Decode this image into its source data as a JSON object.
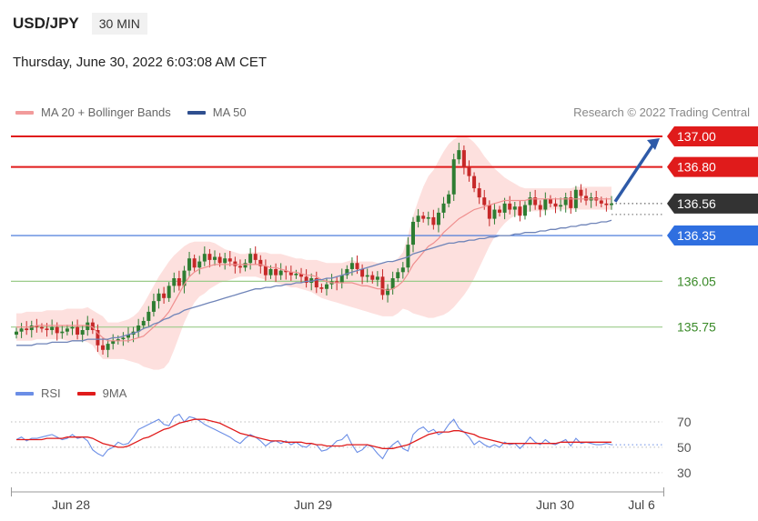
{
  "header": {
    "symbol": "USD/JPY",
    "timeframe": "30 MIN"
  },
  "timestamp": "Thursday, June 30, 2022 6:03:08 AM CET",
  "legend": {
    "ma20_label": "MA 20 + Bollinger Bands",
    "ma50_label": "MA 50",
    "rsi_label": "RSI",
    "ma9_label": "9MA"
  },
  "credit": "Research © 2022 Trading Central",
  "colors": {
    "up": "#2e7d32",
    "down": "#c62828",
    "resistance": "#e01b1b",
    "support_line": "#3a6fd8",
    "green_level": "#9ccc8a",
    "bb_fill": "#fde0de",
    "ma20": "#ef8f8f",
    "ma50": "#6f84b8",
    "rsi": "#6b8ee6",
    "rsi_ma": "#e01b1b",
    "price_tag": "#333333",
    "support_tag": "#2f6fe0"
  },
  "chart_data": {
    "type": "candlestick",
    "price_ylim": [
      135.42,
      137.06
    ],
    "current_price": 136.56,
    "levels": [
      {
        "label": "137.00",
        "value": 137.0,
        "kind": "resistance"
      },
      {
        "label": "136.80",
        "value": 136.8,
        "kind": "resistance"
      },
      {
        "label": "136.56",
        "value": 136.56,
        "kind": "current"
      },
      {
        "label": "136.35",
        "value": 136.35,
        "kind": "support"
      },
      {
        "label": "136.05",
        "value": 136.05,
        "kind": "target"
      },
      {
        "label": "135.75",
        "value": 135.75,
        "kind": "target"
      }
    ],
    "x_ticks": [
      "Jun 28",
      "Jun 29",
      "Jun 30",
      "Jul 6"
    ],
    "closes": [
      135.72,
      135.74,
      135.73,
      135.76,
      135.75,
      135.74,
      135.73,
      135.75,
      135.71,
      135.72,
      135.74,
      135.75,
      135.7,
      135.73,
      135.78,
      135.73,
      135.63,
      135.6,
      135.64,
      135.66,
      135.67,
      135.68,
      135.7,
      135.72,
      135.76,
      135.79,
      135.85,
      135.92,
      135.97,
      135.94,
      136.02,
      136.07,
      136.02,
      136.12,
      136.2,
      136.14,
      136.18,
      136.23,
      136.19,
      136.21,
      136.17,
      136.2,
      136.18,
      136.15,
      136.14,
      136.17,
      136.23,
      136.19,
      136.15,
      136.09,
      136.13,
      136.09,
      136.12,
      136.11,
      136.09,
      136.1,
      136.08,
      136.04,
      136.07,
      136.01,
      136.0,
      136.03,
      136.05,
      136.04,
      136.09,
      136.13,
      136.17,
      136.13,
      136.08,
      136.09,
      136.06,
      136.08,
      135.96,
      136.0,
      136.07,
      136.11,
      136.14,
      136.29,
      136.44,
      136.48,
      136.46,
      136.47,
      136.42,
      136.5,
      136.56,
      136.62,
      136.85,
      136.91,
      136.8,
      136.74,
      136.66,
      136.6,
      136.55,
      136.46,
      136.52,
      136.5,
      136.56,
      136.52,
      136.54,
      136.48,
      136.55,
      136.6,
      136.55,
      136.52,
      136.59,
      136.56,
      136.54,
      136.55,
      136.6,
      136.53,
      136.65,
      136.61,
      136.58,
      136.6,
      136.58,
      136.56,
      136.55,
      136.56
    ],
    "bb_upper": [
      135.84,
      135.84,
      135.85,
      135.85,
      135.85,
      135.85,
      135.86,
      135.86,
      135.86,
      135.86,
      135.87,
      135.87,
      135.87,
      135.87,
      135.88,
      135.86,
      135.84,
      135.82,
      135.78,
      135.78,
      135.78,
      135.79,
      135.8,
      135.82,
      135.85,
      135.9,
      135.96,
      136.02,
      136.08,
      136.13,
      136.18,
      136.22,
      136.25,
      136.28,
      136.3,
      136.31,
      136.31,
      136.31,
      136.31,
      136.3,
      136.28,
      136.26,
      136.25,
      136.24,
      136.23,
      136.23,
      136.24,
      136.24,
      136.24,
      136.24,
      136.23,
      136.23,
      136.23,
      136.22,
      136.21,
      136.2,
      136.2,
      136.19,
      136.19,
      136.19,
      136.18,
      136.17,
      136.17,
      136.17,
      136.17,
      136.18,
      136.19,
      136.18,
      136.18,
      136.18,
      136.18,
      136.17,
      136.17,
      136.17,
      136.18,
      136.2,
      136.24,
      136.35,
      136.48,
      136.58,
      136.67,
      136.74,
      136.78,
      136.84,
      136.9,
      136.95,
      136.98,
      137.0,
      137.0,
      136.99,
      136.96,
      136.92,
      136.87,
      136.83,
      136.79,
      136.76,
      136.73,
      136.71,
      136.69,
      136.67,
      136.66,
      136.66,
      136.66,
      136.66,
      136.66,
      136.66,
      136.66,
      136.66,
      136.66,
      136.66,
      136.67,
      136.67,
      136.67,
      136.67,
      136.67,
      136.67,
      136.67,
      136.67
    ],
    "bb_lower": [
      135.66,
      135.66,
      135.66,
      135.66,
      135.67,
      135.67,
      135.67,
      135.67,
      135.67,
      135.67,
      135.66,
      135.66,
      135.66,
      135.66,
      135.65,
      135.63,
      135.58,
      135.54,
      135.54,
      135.54,
      135.54,
      135.54,
      135.53,
      135.52,
      135.51,
      135.49,
      135.48,
      135.47,
      135.47,
      135.48,
      135.52,
      135.6,
      135.69,
      135.78,
      135.85,
      135.91,
      135.95,
      135.97,
      136.0,
      136.02,
      136.04,
      136.05,
      136.06,
      136.07,
      136.08,
      136.08,
      136.08,
      136.08,
      136.07,
      136.06,
      136.05,
      136.04,
      136.03,
      136.02,
      136.01,
      136.01,
      136.0,
      135.99,
      135.98,
      135.96,
      135.94,
      135.93,
      135.92,
      135.91,
      135.9,
      135.89,
      135.88,
      135.87,
      135.86,
      135.85,
      135.84,
      135.83,
      135.82,
      135.82,
      135.82,
      135.84,
      135.87,
      135.86,
      135.84,
      135.83,
      135.82,
      135.81,
      135.81,
      135.82,
      135.83,
      135.85,
      135.88,
      135.92,
      135.96,
      136.01,
      136.07,
      136.14,
      136.21,
      136.28,
      136.34,
      136.39,
      136.43,
      136.46,
      136.48,
      136.49,
      136.5,
      136.51,
      136.51,
      136.51,
      136.51,
      136.52,
      136.52,
      136.52,
      136.52,
      136.52,
      136.52,
      136.52,
      136.52,
      136.52,
      136.52,
      136.52,
      136.52,
      136.52
    ],
    "ma20": [
      135.75,
      135.75,
      135.75,
      135.75,
      135.76,
      135.76,
      135.76,
      135.76,
      135.76,
      135.76,
      135.76,
      135.76,
      135.76,
      135.76,
      135.76,
      135.75,
      135.71,
      135.68,
      135.66,
      135.66,
      135.66,
      135.66,
      135.66,
      135.67,
      135.68,
      135.69,
      135.72,
      135.75,
      135.78,
      135.81,
      135.85,
      135.91,
      135.97,
      136.03,
      136.08,
      136.11,
      136.13,
      136.14,
      136.15,
      136.16,
      136.16,
      136.16,
      136.16,
      136.16,
      136.16,
      136.16,
      136.16,
      136.16,
      136.16,
      136.15,
      136.14,
      136.14,
      136.13,
      136.12,
      136.11,
      136.11,
      136.1,
      136.09,
      136.09,
      136.08,
      136.06,
      136.05,
      136.04,
      136.04,
      136.04,
      136.04,
      136.04,
      136.03,
      136.02,
      136.02,
      136.01,
      136.0,
      136.0,
      135.99,
      136.0,
      136.02,
      136.05,
      136.1,
      136.16,
      136.2,
      136.24,
      136.28,
      136.3,
      136.33,
      136.37,
      136.4,
      136.43,
      136.46,
      136.48,
      136.5,
      136.52,
      136.53,
      136.54,
      136.55,
      136.56,
      136.57,
      136.58,
      136.58,
      136.58,
      136.58,
      136.58,
      136.59,
      136.59,
      136.59,
      136.59,
      136.59,
      136.59,
      136.59,
      136.59,
      136.59,
      136.59,
      136.59,
      136.59,
      136.59,
      136.59,
      136.59,
      136.59,
      136.59
    ],
    "ma50": [
      135.63,
      135.63,
      135.63,
      135.63,
      135.64,
      135.64,
      135.64,
      135.65,
      135.65,
      135.65,
      135.65,
      135.66,
      135.66,
      135.66,
      135.67,
      135.67,
      135.67,
      135.67,
      135.67,
      135.68,
      135.68,
      135.69,
      135.7,
      135.71,
      135.72,
      135.74,
      135.75,
      135.77,
      135.78,
      135.8,
      135.81,
      135.83,
      135.84,
      135.86,
      135.87,
      135.88,
      135.89,
      135.9,
      135.91,
      135.92,
      135.93,
      135.94,
      135.95,
      135.96,
      135.97,
      135.98,
      135.99,
      136.0,
      136.0,
      136.01,
      136.01,
      136.02,
      136.02,
      136.03,
      136.03,
      136.04,
      136.04,
      136.05,
      136.05,
      136.06,
      136.06,
      136.07,
      136.07,
      136.08,
      136.09,
      136.1,
      136.11,
      136.12,
      136.13,
      136.14,
      136.15,
      136.16,
      136.17,
      136.18,
      136.18,
      136.19,
      136.2,
      136.21,
      136.23,
      136.24,
      136.25,
      136.26,
      136.27,
      136.28,
      136.29,
      136.3,
      136.3,
      136.31,
      136.31,
      136.32,
      136.32,
      136.33,
      136.33,
      136.34,
      136.34,
      136.35,
      136.35,
      136.35,
      136.36,
      136.36,
      136.37,
      136.37,
      136.37,
      136.38,
      136.38,
      136.39,
      136.39,
      136.4,
      136.4,
      136.41,
      136.41,
      136.42,
      136.42,
      136.43,
      136.43,
      136.44,
      136.44,
      136.45
    ],
    "rsi": {
      "yticks": [
        70,
        50,
        30
      ],
      "ylim": [
        22,
        80
      ],
      "rsi": [
        56,
        58,
        55,
        57,
        57,
        58,
        59,
        60,
        58,
        56,
        57,
        60,
        57,
        58,
        55,
        48,
        45,
        43,
        48,
        50,
        54,
        52,
        53,
        58,
        64,
        66,
        68,
        70,
        72,
        68,
        67,
        74,
        76,
        70,
        74,
        73,
        71,
        68,
        66,
        64,
        62,
        60,
        58,
        55,
        53,
        57,
        60,
        58,
        55,
        51,
        54,
        55,
        53,
        55,
        52,
        54,
        51,
        50,
        53,
        52,
        47,
        48,
        51,
        55,
        56,
        60,
        52,
        46,
        48,
        52,
        50,
        45,
        41,
        48,
        52,
        55,
        49,
        47,
        60,
        64,
        66,
        62,
        64,
        60,
        62,
        68,
        72,
        65,
        62,
        58,
        52,
        55,
        52,
        50,
        52,
        50,
        54,
        52,
        53,
        49,
        53,
        58,
        54,
        52,
        56,
        53,
        52,
        54,
        56,
        51,
        57,
        53,
        54,
        53,
        52,
        52,
        53,
        52
      ],
      "ma9": [
        56,
        56,
        56,
        56,
        56,
        56,
        57,
        57,
        57,
        57,
        58,
        58,
        58,
        58,
        58,
        57,
        55,
        53,
        52,
        51,
        50,
        50,
        51,
        53,
        55,
        57,
        58,
        60,
        62,
        64,
        65,
        67,
        69,
        70,
        71,
        72,
        72,
        72,
        71,
        70,
        69,
        67,
        65,
        63,
        61,
        60,
        59,
        58,
        57,
        56,
        55,
        55,
        55,
        54,
        54,
        54,
        54,
        53,
        53,
        52,
        52,
        51,
        51,
        51,
        51,
        52,
        52,
        52,
        52,
        52,
        51,
        50,
        49,
        49,
        49,
        50,
        51,
        52,
        54,
        56,
        58,
        60,
        61,
        62,
        62,
        62,
        63,
        63,
        62,
        61,
        60,
        58,
        57,
        56,
        55,
        54,
        53,
        53,
        53,
        53,
        53,
        53,
        53,
        53,
        53,
        53,
        53,
        54,
        54,
        54,
        54,
        54,
        54,
        54,
        54,
        54,
        54,
        54
      ]
    }
  }
}
